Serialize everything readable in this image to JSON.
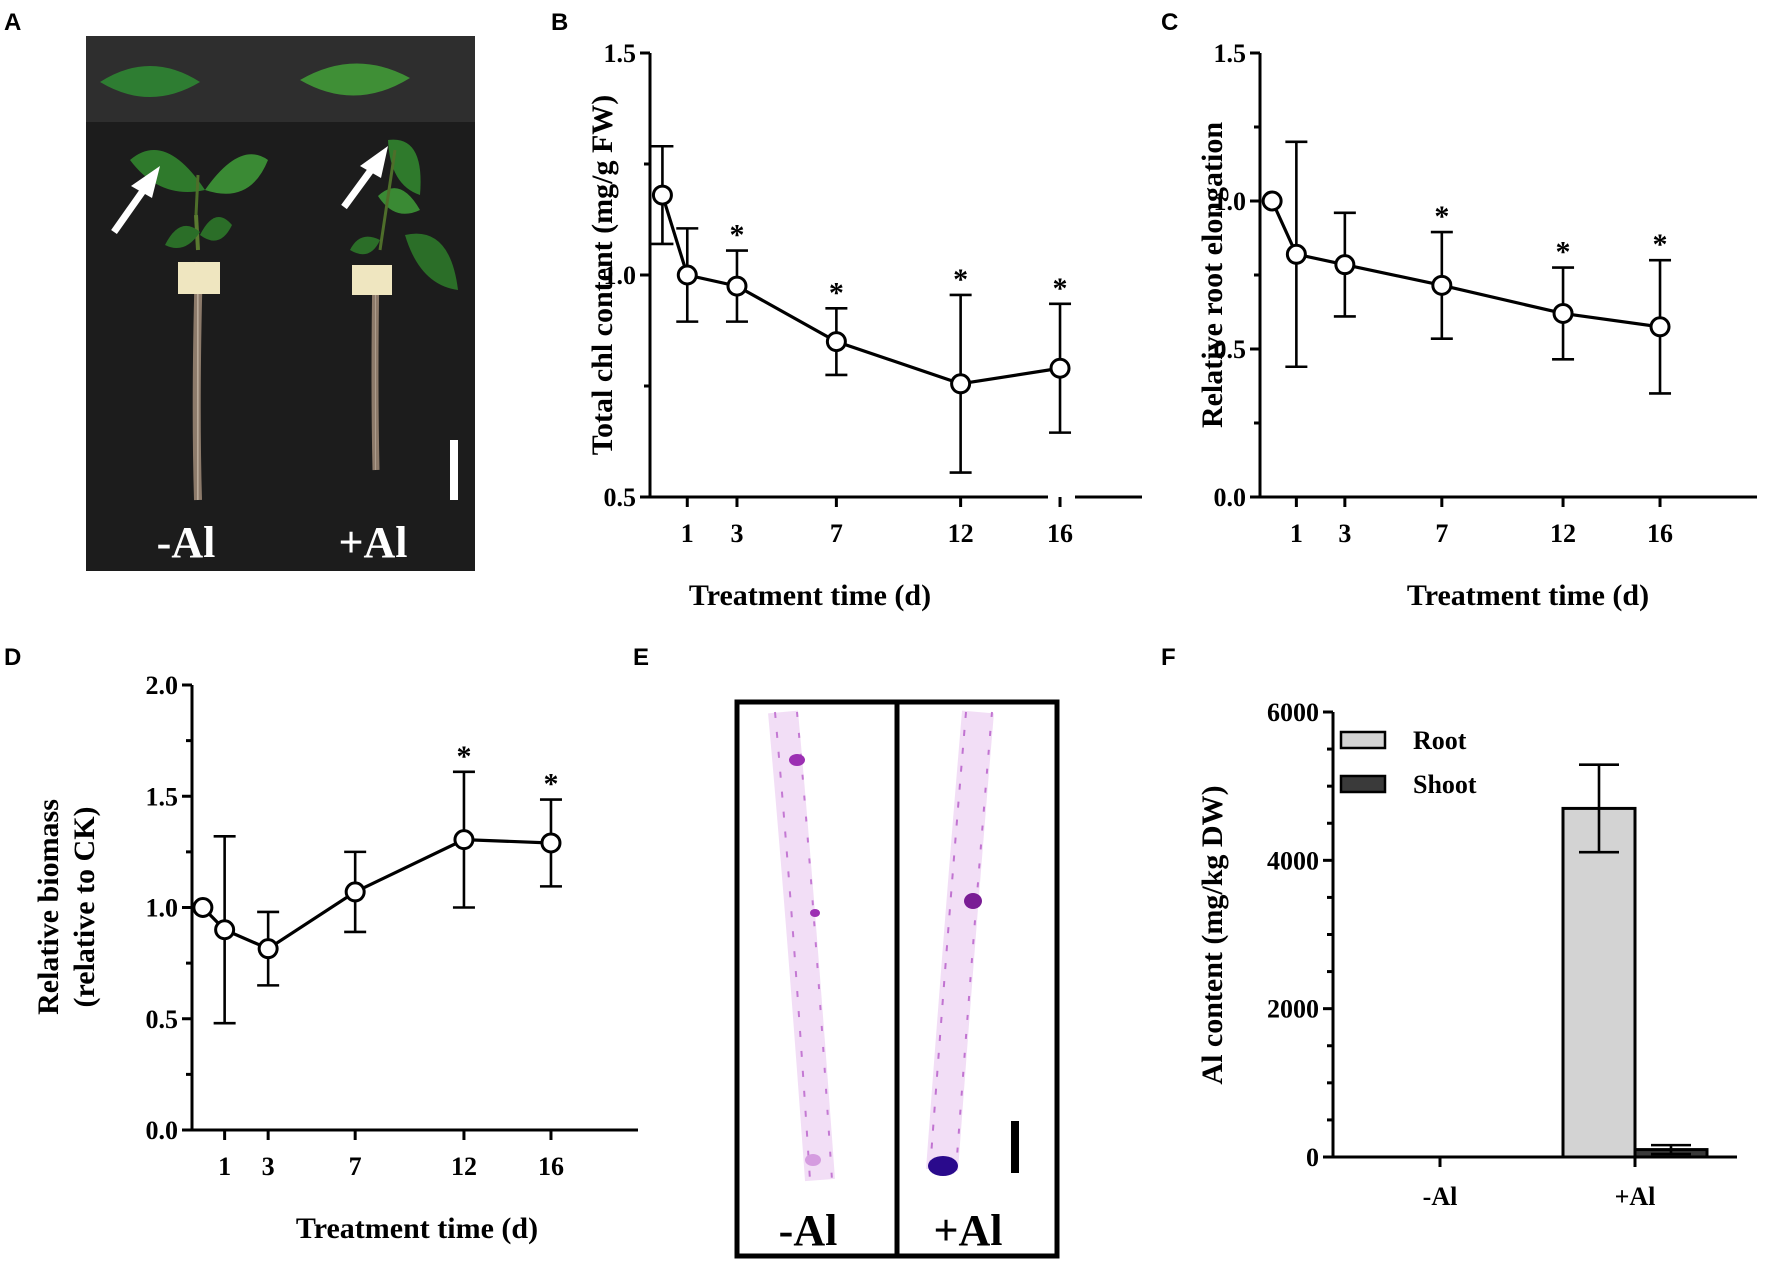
{
  "panels": {
    "a": {
      "label": "A",
      "photo_labels": [
        "-Al",
        "+Al"
      ]
    },
    "b": {
      "label": "B"
    },
    "c": {
      "label": "C"
    },
    "d": {
      "label": "D"
    },
    "e": {
      "label": "E",
      "photo_labels": [
        "-Al",
        "+Al"
      ]
    },
    "f": {
      "label": "F"
    }
  },
  "colors": {
    "root_bar": "#d3d3d3",
    "shoot_bar": "#3a3a3a",
    "photo_background": "#1c1c1c",
    "leaf_green": "#2e7d32",
    "stain_purple": "#b04fc4"
  },
  "chart_data": [
    {
      "panel": "B",
      "type": "line",
      "title": "",
      "xlabel": "Treatment time (d)",
      "ylabel": "Total chl content (mg/g FW)",
      "x": [
        0,
        1,
        3,
        7,
        12,
        16
      ],
      "x_tick_labels": [
        "1",
        "3",
        "7",
        "12",
        "16"
      ],
      "y": [
        1.18,
        1.0,
        0.975,
        0.85,
        0.755,
        0.79
      ],
      "err": [
        0.11,
        0.105,
        0.08,
        0.075,
        0.2,
        0.145
      ],
      "y_tick_labels": [
        "0.5",
        "1.0",
        "1.5"
      ],
      "ylim": [
        0.5,
        1.5
      ],
      "xlim": [
        -0.5,
        19.5
      ],
      "significant": [
        false,
        false,
        true,
        true,
        true,
        true
      ],
      "marker": "*"
    },
    {
      "panel": "C",
      "type": "line",
      "title": "",
      "xlabel": "Treatment time (d)",
      "ylabel": "Relative root elongation",
      "x": [
        0,
        1,
        3,
        7,
        12,
        16
      ],
      "x_tick_labels": [
        "1",
        "3",
        "7",
        "12",
        "16"
      ],
      "y": [
        1.0,
        0.82,
        0.785,
        0.715,
        0.62,
        0.575
      ],
      "err": [
        0,
        0.38,
        0.175,
        0.18,
        0.155,
        0.225
      ],
      "y_tick_labels": [
        "0.0",
        "0.5",
        "1.0",
        "1.5"
      ],
      "ylim": [
        0,
        1.5
      ],
      "xlim": [
        -0.5,
        20
      ],
      "significant": [
        false,
        false,
        false,
        true,
        true,
        true
      ],
      "marker": "*"
    },
    {
      "panel": "D",
      "type": "line",
      "title": "",
      "xlabel": "Treatment time (d)",
      "ylabel": [
        "Relative biomass",
        "(relative to CK)"
      ],
      "x": [
        0,
        1,
        3,
        7,
        12,
        16
      ],
      "x_tick_labels": [
        "1",
        "3",
        "7",
        "12",
        "16"
      ],
      "y": [
        1.0,
        0.9,
        0.815,
        1.07,
        1.305,
        1.29
      ],
      "err": [
        0,
        0.42,
        0.165,
        0.18,
        0.305,
        0.195
      ],
      "y_tick_labels": [
        "0.0",
        "0.5",
        "1.0",
        "1.5",
        "2.0"
      ],
      "ylim": [
        0,
        2
      ],
      "xlim": [
        -0.5,
        20
      ],
      "significant": [
        false,
        false,
        false,
        false,
        true,
        true
      ],
      "marker": "*"
    },
    {
      "panel": "F",
      "type": "bar",
      "title": "",
      "xlabel": "",
      "ylabel": "Al content (mg/kg DW)",
      "categories": [
        "-Al",
        "+Al"
      ],
      "series": [
        {
          "name": "Root",
          "values": [
            0,
            4700
          ],
          "err": [
            0,
            590
          ]
        },
        {
          "name": "Shoot",
          "values": [
            0,
            100
          ],
          "err": [
            0,
            60
          ]
        }
      ],
      "y_tick_labels": [
        "0",
        "2000",
        "4000",
        "6000"
      ],
      "ylim": [
        0,
        6000
      ],
      "legend": "top-left"
    }
  ]
}
